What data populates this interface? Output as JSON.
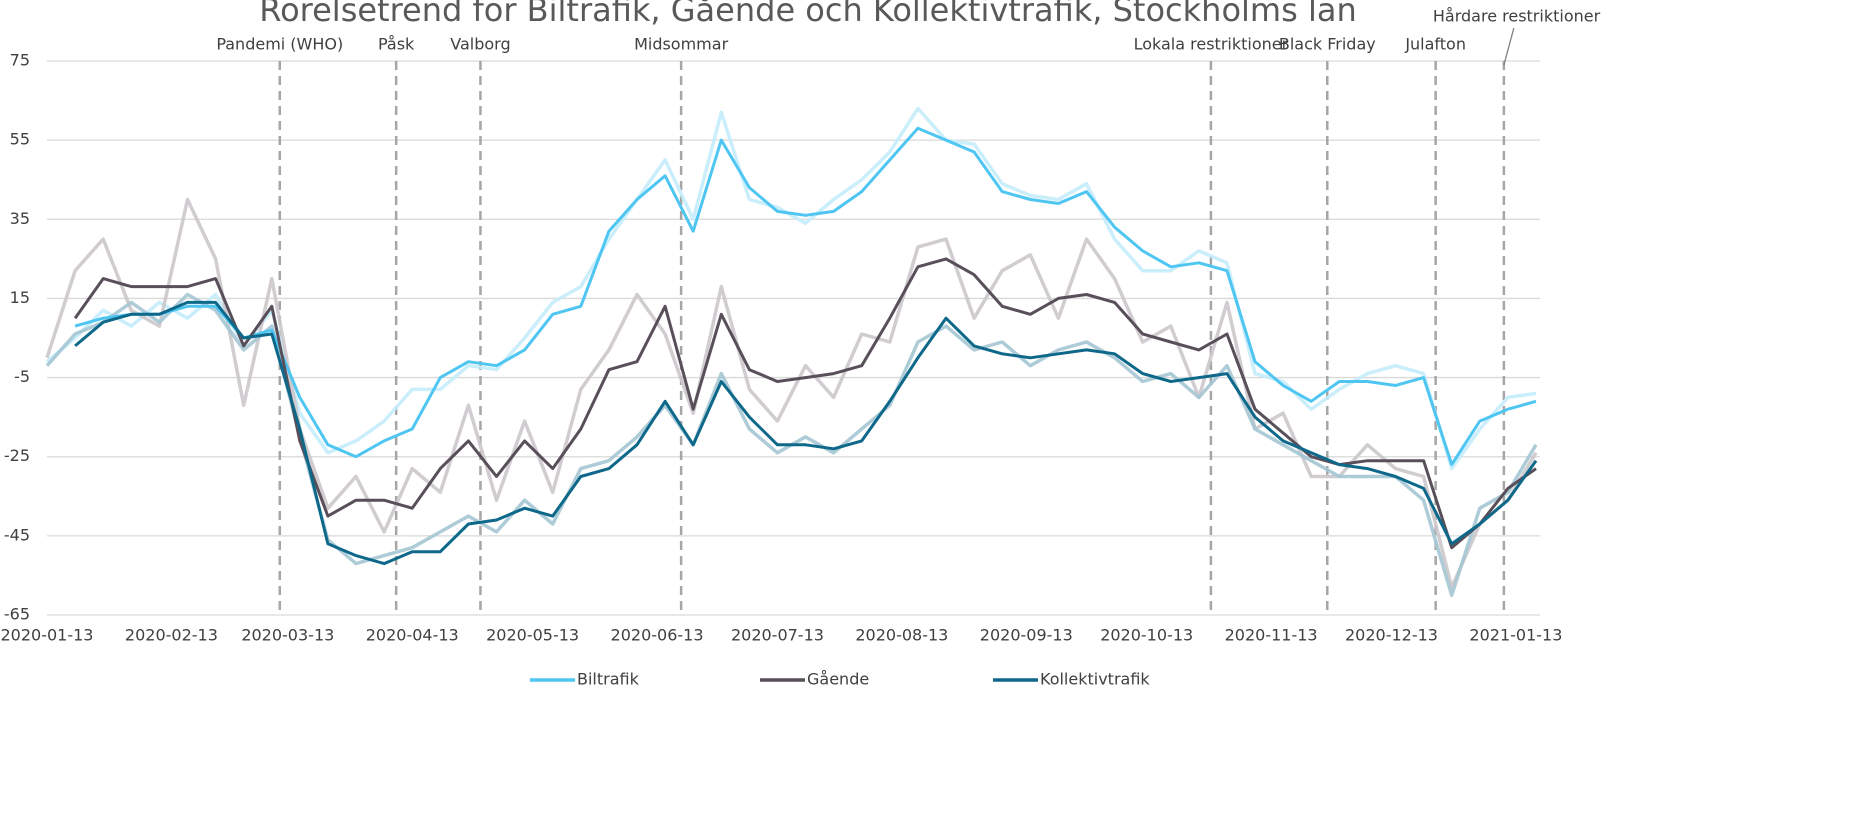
{
  "chart_data": {
    "type": "line",
    "title": "Rörelsetrend för Biltrafik, Gående och Kollektivtrafik, Stockholms län",
    "x": [
      "2020-01-13",
      "2020-01-20",
      "2020-01-27",
      "2020-02-03",
      "2020-02-10",
      "2020-02-17",
      "2020-02-24",
      "2020-03-02",
      "2020-03-09",
      "2020-03-16",
      "2020-03-23",
      "2020-03-30",
      "2020-04-06",
      "2020-04-13",
      "2020-04-20",
      "2020-04-27",
      "2020-05-04",
      "2020-05-11",
      "2020-05-18",
      "2020-05-25",
      "2020-06-01",
      "2020-06-08",
      "2020-06-15",
      "2020-06-22",
      "2020-06-29",
      "2020-07-06",
      "2020-07-13",
      "2020-07-20",
      "2020-07-27",
      "2020-08-03",
      "2020-08-10",
      "2020-08-17",
      "2020-08-24",
      "2020-08-31",
      "2020-09-07",
      "2020-09-14",
      "2020-09-21",
      "2020-09-28",
      "2020-10-05",
      "2020-10-12",
      "2020-10-19",
      "2020-10-26",
      "2020-11-02",
      "2020-11-09",
      "2020-11-16",
      "2020-11-23",
      "2020-11-30",
      "2020-12-07",
      "2020-12-14",
      "2020-12-21",
      "2020-12-28",
      "2021-01-04",
      "2021-01-11",
      "2021-01-18"
    ],
    "series": [
      {
        "name": "Biltrafik",
        "color": "#4fc6f2",
        "raw_color": "#c4ecfb",
        "values": [
          null,
          8,
          10,
          11,
          11,
          13,
          13,
          5,
          7,
          -10,
          -22,
          -25,
          -21,
          -18,
          -5,
          -1,
          -2,
          2,
          11,
          13,
          32,
          40,
          46,
          32,
          55,
          43,
          37,
          36,
          37,
          42,
          50,
          58,
          55,
          52,
          42,
          40,
          39,
          42,
          33,
          27,
          23,
          24,
          22,
          -1,
          -7,
          -11,
          -6,
          -6,
          -7,
          -5,
          -27,
          -16,
          -13,
          -11
        ],
        "raw_values": [
          -1,
          5,
          12,
          8,
          14,
          10,
          16,
          3,
          12,
          -14,
          -24,
          -21,
          -16,
          -8,
          -8,
          -2,
          -3,
          5,
          14,
          18,
          30,
          40,
          50,
          35,
          62,
          40,
          38,
          34,
          40,
          45,
          52,
          63,
          55,
          54,
          44,
          41,
          40,
          44,
          30,
          22,
          22,
          27,
          24,
          -4,
          -6,
          -13,
          -8,
          -4,
          -2,
          -4,
          -28,
          -18,
          -10,
          -9
        ]
      },
      {
        "name": "Gående",
        "color": "#594f5a",
        "raw_color": "#cbc7cb",
        "values": [
          null,
          10,
          20,
          18,
          18,
          18,
          20,
          3,
          13,
          -21,
          -40,
          -36,
          -36,
          -38,
          -28,
          -21,
          -30,
          -21,
          -28,
          -18,
          -3,
          -1,
          13,
          -13,
          11,
          -3,
          -6,
          -5,
          -4,
          -2,
          10,
          23,
          25,
          21,
          13,
          11,
          15,
          16,
          14,
          6,
          4,
          2,
          6,
          -13,
          -19,
          -25,
          -27,
          -26,
          -26,
          -26,
          -48,
          -42,
          -33,
          -28
        ],
        "raw_values": [
          0,
          22,
          30,
          12,
          8,
          40,
          25,
          -12,
          20,
          -18,
          -38,
          -30,
          -44,
          -28,
          -34,
          -12,
          -36,
          -16,
          -34,
          -8,
          2,
          16,
          6,
          -14,
          18,
          -8,
          -16,
          -2,
          -10,
          6,
          4,
          28,
          30,
          10,
          22,
          26,
          10,
          30,
          20,
          4,
          8,
          -10,
          14,
          -18,
          -14,
          -30,
          -30,
          -22,
          -28,
          -30,
          -58,
          -42,
          -36,
          -24
        ]
      },
      {
        "name": "Kollektivtrafik",
        "color": "#0e688a",
        "raw_color": "#a4c6d3",
        "values": [
          null,
          3,
          9,
          11,
          11,
          14,
          14,
          5,
          6,
          -18,
          -47,
          -50,
          -52,
          -49,
          -49,
          -42,
          -41,
          -38,
          -40,
          -30,
          -28,
          -22,
          -11,
          -22,
          -6,
          -15,
          -22,
          -22,
          -23,
          -21,
          -11,
          0,
          10,
          3,
          1,
          0,
          1,
          2,
          1,
          -4,
          -6,
          -5,
          -4,
          -15,
          -21,
          -24,
          -27,
          -28,
          -30,
          -33,
          -47,
          -42,
          -36,
          -26
        ],
        "raw_values": [
          -2,
          6,
          9,
          14,
          9,
          16,
          12,
          2,
          8,
          -20,
          -46,
          -52,
          -50,
          -48,
          -44,
          -40,
          -44,
          -36,
          -42,
          -28,
          -26,
          -20,
          -12,
          -22,
          -4,
          -18,
          -24,
          -20,
          -24,
          -18,
          -12,
          4,
          8,
          2,
          4,
          -2,
          2,
          4,
          0,
          -6,
          -4,
          -10,
          -2,
          -18,
          -22,
          -26,
          -30,
          -30,
          -30,
          -36,
          -60,
          -38,
          -34,
          -22
        ]
      }
    ],
    "xlim": [
      "2020-01-13",
      "2021-01-19"
    ],
    "xticks": [
      "2020-01-13",
      "2020-02-13",
      "2020-03-13",
      "2020-04-13",
      "2020-05-13",
      "2020-06-13",
      "2020-07-13",
      "2020-08-13",
      "2020-09-13",
      "2020-10-13",
      "2020-11-13",
      "2020-12-13",
      "2021-01-13"
    ],
    "ylim": [
      -65,
      75
    ],
    "yticks": [
      -65,
      -45,
      -25,
      -5,
      15,
      35,
      55,
      75
    ],
    "grid": true,
    "legend": "bottom",
    "annotations": [
      {
        "label": "Pandemi (WHO)",
        "x": "2020-03-11"
      },
      {
        "label": "Påsk",
        "x": "2020-04-09"
      },
      {
        "label": "Valborg",
        "x": "2020-04-30"
      },
      {
        "label": "Midsommar",
        "x": "2020-06-19"
      },
      {
        "label": "Lokala restriktioner",
        "x": "2020-10-29"
      },
      {
        "label": "Black Friday",
        "x": "2020-11-27"
      },
      {
        "label": "Julafton",
        "x": "2020-12-24"
      },
      {
        "label": "Hårdare restriktioner",
        "x": "2021-01-10"
      }
    ]
  }
}
